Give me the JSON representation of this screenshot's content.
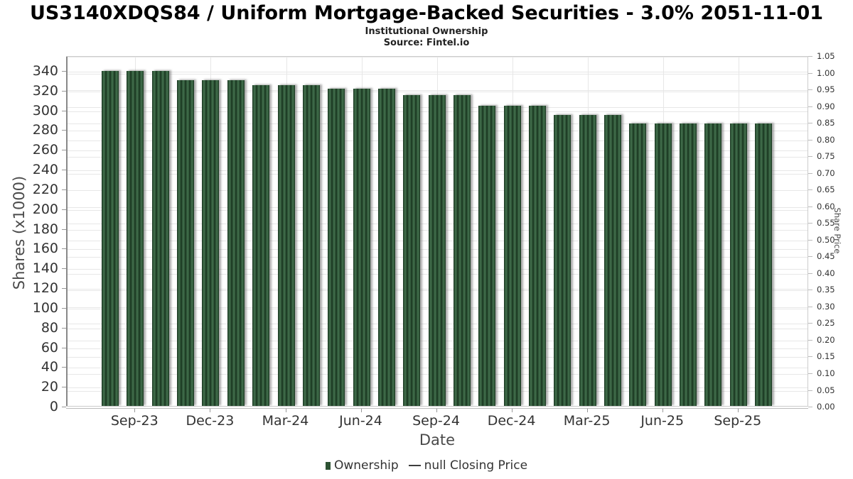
{
  "header": {
    "title": "US3140XDQS84 / Uniform Mortgage-Backed Securities - 3.0% 2051-11-01",
    "subtitle": "Institutional Ownership",
    "source": "Source: Fintel.io"
  },
  "chart_data": {
    "type": "bar",
    "title": "US3140XDQS84 / Uniform Mortgage-Backed Securities - 3.0% 2051-11-01",
    "subtitle": "Institutional Ownership",
    "source": "Source: Fintel.io",
    "xlabel": "Date",
    "categories": [
      "Aug-23",
      "Sep-23",
      "Oct-23",
      "Nov-23",
      "Dec-23",
      "Jan-24",
      "Feb-24",
      "Mar-24",
      "Apr-24",
      "May-24",
      "Jun-24",
      "Jul-24",
      "Aug-24",
      "Sep-24",
      "Oct-24",
      "Nov-24",
      "Dec-24",
      "Jan-25",
      "Feb-25",
      "Mar-25",
      "Apr-25",
      "May-25",
      "Jun-25",
      "Jul-25",
      "Aug-25",
      "Sep-25",
      "Oct-25"
    ],
    "series": [
      {
        "name": "Ownership",
        "type": "bar",
        "color": "#2d5233",
        "values": [
          339,
          339,
          339,
          330,
          330,
          330,
          325,
          325,
          325,
          321,
          321,
          321,
          315,
          315,
          315,
          304,
          304,
          304,
          295,
          295,
          295,
          286,
          286,
          286,
          286,
          286,
          286
        ]
      },
      {
        "name": "null Closing Price",
        "type": "line",
        "color": "#3d3d3d",
        "values": []
      }
    ],
    "x_axis": {
      "tick_labels": [
        "Sep-23",
        "Dec-23",
        "Mar-24",
        "Jun-24",
        "Sep-24",
        "Dec-24",
        "Mar-25",
        "Jun-25",
        "Sep-25"
      ],
      "tick_month_indices": [
        1,
        4,
        7,
        10,
        13,
        16,
        19,
        22,
        25
      ]
    },
    "y_axis_left": {
      "label": "Shares (x1000)",
      "ticks": [
        0,
        20,
        40,
        60,
        80,
        100,
        120,
        140,
        160,
        180,
        200,
        220,
        240,
        260,
        280,
        300,
        320,
        340
      ],
      "max": 355
    },
    "y_axis_right": {
      "label": "Share Price",
      "ticks": [
        0,
        0.05,
        0.1,
        0.15,
        0.2,
        0.25,
        0.3,
        0.35,
        0.4,
        0.45,
        0.5,
        0.55,
        0.6,
        0.65,
        0.7,
        0.75,
        0.8,
        0.85,
        0.9,
        0.95,
        1.0,
        1.05
      ],
      "max": 1.05
    },
    "legend_items": [
      "Ownership",
      "null Closing Price"
    ],
    "legend_position": "bottom",
    "grid": true,
    "ylim_left": [
      0,
      355
    ],
    "ylim_right": [
      0,
      1.05
    ]
  },
  "colors": {
    "bar_base": "#2d5233",
    "bar_stripe_dark": "#16301c",
    "bar_stripe_light": "#3f6a49",
    "gridline": "#e7e7e7",
    "tick_text": "#333333",
    "axis_title_text": "#4a4a4a",
    "legend_dash": "#3d3d3d"
  }
}
